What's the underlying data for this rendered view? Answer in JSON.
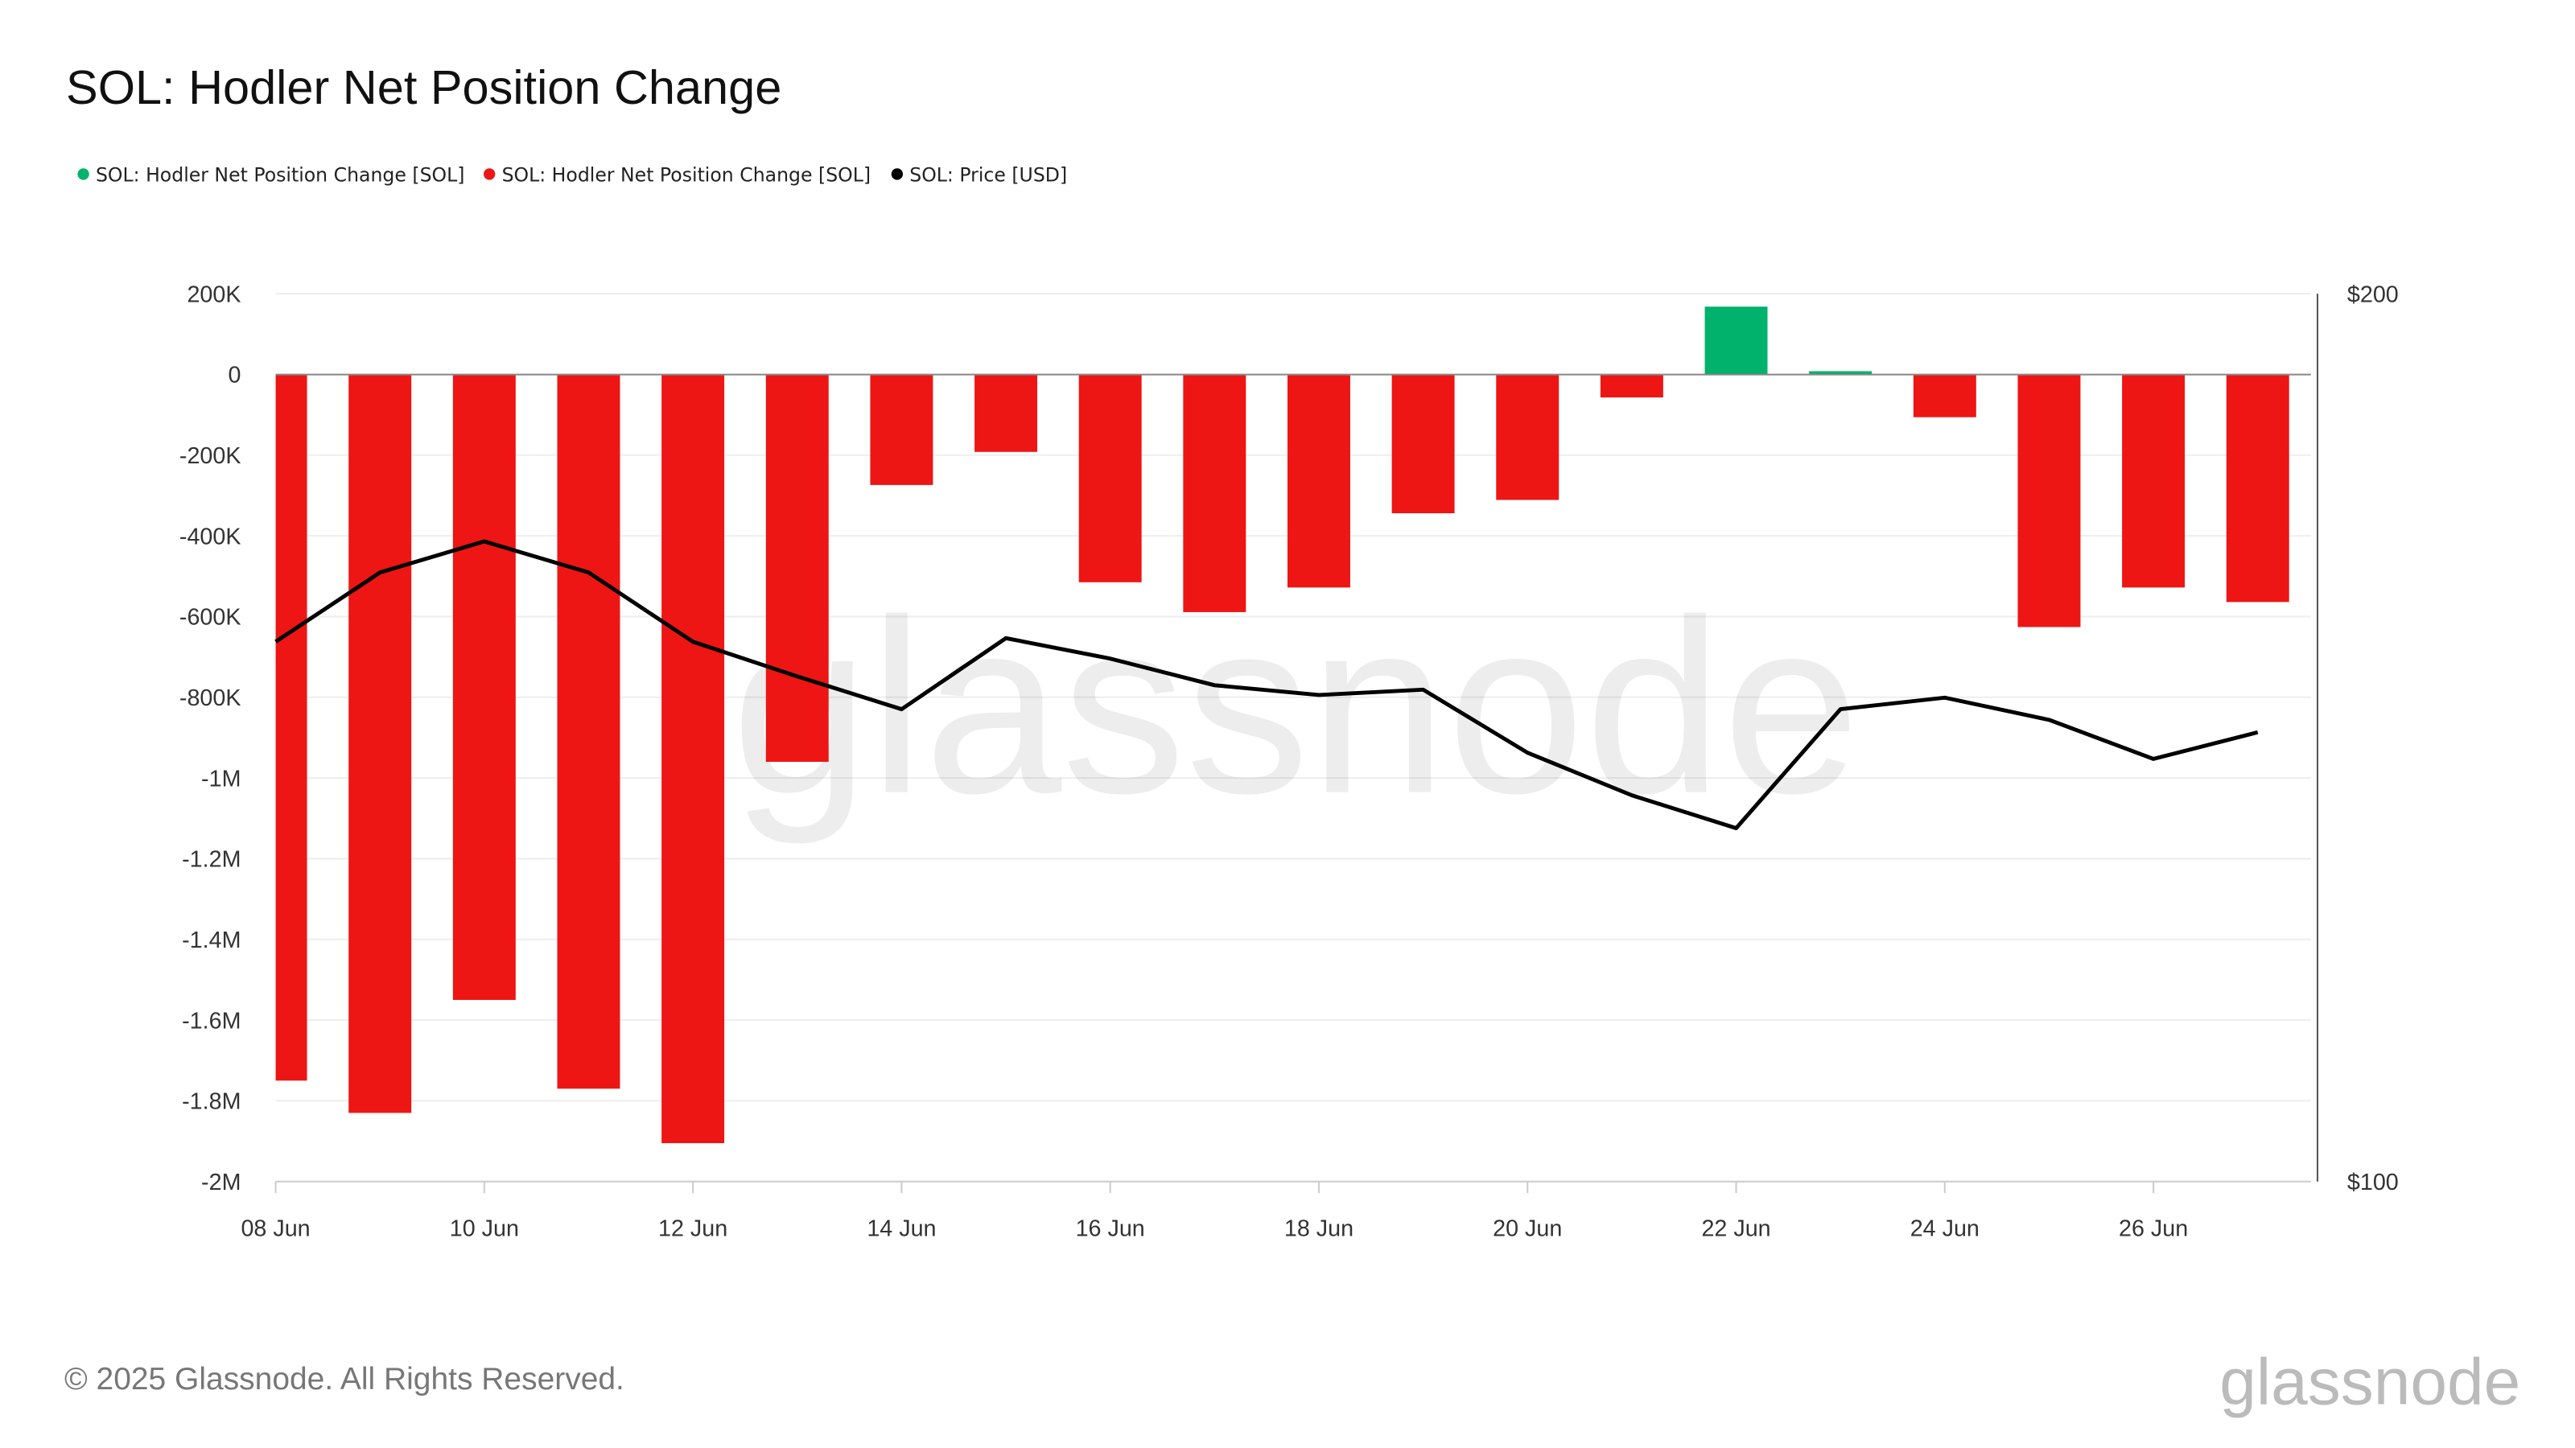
{
  "title": "SOL: Hodler Net Position Change",
  "legend": [
    {
      "label": "SOL: Hodler Net Position Change [SOL]",
      "color": "#00b26b"
    },
    {
      "label": "SOL: Hodler Net Position Change [SOL]",
      "color": "#ee1515"
    },
    {
      "label": "SOL: Price [USD]",
      "color": "#000000"
    }
  ],
  "footer": {
    "copyright": "© 2025 Glassnode. All Rights Reserved.",
    "logo": "glassnode"
  },
  "watermark": "glassnode",
  "chart_data": {
    "type": "bar+line",
    "title": "SOL: Hodler Net Position Change",
    "categories": [
      "08 Jun",
      "09 Jun",
      "10 Jun",
      "11 Jun",
      "12 Jun",
      "13 Jun",
      "14 Jun",
      "15 Jun",
      "16 Jun",
      "17 Jun",
      "18 Jun",
      "19 Jun",
      "20 Jun",
      "21 Jun",
      "22 Jun",
      "23 Jun",
      "24 Jun",
      "25 Jun",
      "26 Jun",
      "27 Jun"
    ],
    "x_tick_labels": [
      "08 Jun",
      "10 Jun",
      "12 Jun",
      "14 Jun",
      "16 Jun",
      "18 Jun",
      "20 Jun",
      "22 Jun",
      "24 Jun",
      "26 Jun"
    ],
    "series": [
      {
        "name": "SOL: Hodler Net Position Change [SOL]",
        "axis": "left",
        "type": "bar",
        "positive_color": "#00b26b",
        "negative_color": "#ee1515",
        "values": [
          -1750000,
          -1830000,
          -1550000,
          -1770000,
          -1905000,
          -960000,
          -274000,
          -192000,
          -515000,
          -589000,
          -528000,
          -344000,
          -311000,
          -57000,
          168000,
          8000,
          -106000,
          -626000,
          -528000,
          -564000
        ]
      },
      {
        "name": "SOL: Price [USD]",
        "axis": "right",
        "type": "line",
        "color": "#000000",
        "values": [
          160.8,
          168.6,
          172.1,
          168.6,
          160.8,
          156.9,
          153.2,
          161.2,
          158.9,
          155.9,
          154.8,
          155.4,
          148.3,
          143.5,
          139.8,
          153.2,
          154.5,
          152.0,
          147.6,
          150.6
        ]
      }
    ],
    "y_left": {
      "ylim": [
        -2000000,
        200000
      ],
      "ticks": [
        200000,
        0,
        -200000,
        -400000,
        -600000,
        -800000,
        -1000000,
        -1200000,
        -1400000,
        -1600000,
        -1800000,
        -2000000
      ],
      "tick_labels": [
        "200K",
        "0",
        "-200K",
        "-400K",
        "-600K",
        "-800K",
        "-1M",
        "-1.2M",
        "-1.4M",
        "-1.6M",
        "-1.8M",
        "-2M"
      ]
    },
    "y_right": {
      "ylim": [
        100,
        200
      ],
      "tick_labels": [
        "$200",
        "$100"
      ]
    },
    "grid": true,
    "legend_position": "top-left"
  }
}
